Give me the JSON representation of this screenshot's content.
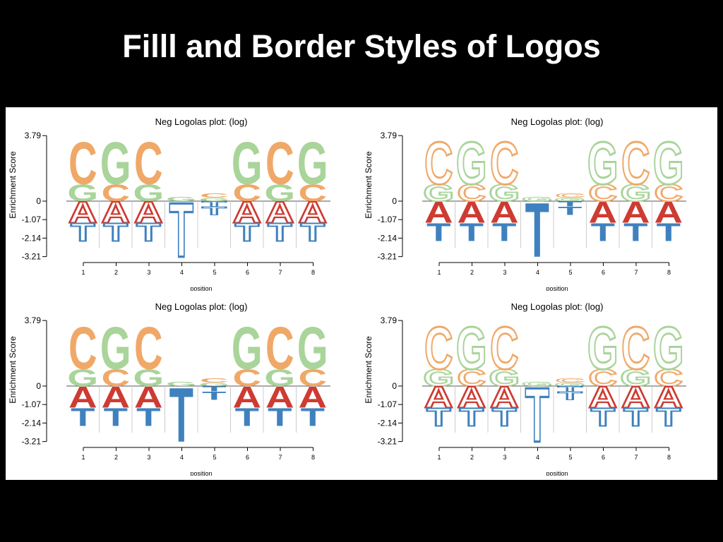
{
  "slide": {
    "title": "Filll and Border Styles of Logos"
  },
  "colors": {
    "C": "#F0A868",
    "G": "#A9D49A",
    "A": "#CD3B32",
    "T": "#3F81BE"
  },
  "chart_data": [
    {
      "type": "logo",
      "style": "fill-positive-border-negative",
      "title": "Neg Logolas plot: (log)",
      "xlabel": "position",
      "ylabel": "Enrichment Score",
      "yticks": [
        "3.79",
        "0",
        "-1.07",
        "-2.14",
        "-3.21"
      ],
      "ylim": [
        -3.21,
        3.79
      ],
      "positions": [
        "1",
        "2",
        "3",
        "4",
        "5",
        "6",
        "7",
        "8"
      ],
      "positive_fill": true,
      "negative_fill": false,
      "stacks": [
        {
          "pos": [
            [
              "G",
              1.0
            ],
            [
              "C",
              2.5
            ]
          ],
          "neg": [
            [
              "A",
              1.25
            ],
            [
              "T",
              1.05
            ]
          ]
        },
        {
          "pos": [
            [
              "C",
              1.0
            ],
            [
              "G",
              2.5
            ]
          ],
          "neg": [
            [
              "A",
              1.25
            ],
            [
              "T",
              1.05
            ]
          ]
        },
        {
          "pos": [
            [
              "G",
              1.0
            ],
            [
              "C",
              2.5
            ]
          ],
          "neg": [
            [
              "A",
              1.25
            ],
            [
              "T",
              1.05
            ]
          ]
        },
        {
          "pos": [
            [
              "G",
              0.25
            ]
          ],
          "neg": [
            [
              "T",
              3.21
            ]
          ]
        },
        {
          "pos": [
            [
              "G",
              0.2
            ],
            [
              "C",
              0.25
            ]
          ],
          "neg": [
            [
              "T",
              0.3
            ],
            [
              "T",
              0.5
            ]
          ]
        },
        {
          "pos": [
            [
              "C",
              1.0
            ],
            [
              "G",
              2.5
            ]
          ],
          "neg": [
            [
              "A",
              1.25
            ],
            [
              "T",
              1.05
            ]
          ]
        },
        {
          "pos": [
            [
              "G",
              1.0
            ],
            [
              "C",
              2.5
            ]
          ],
          "neg": [
            [
              "A",
              1.25
            ],
            [
              "T",
              1.05
            ]
          ]
        },
        {
          "pos": [
            [
              "C",
              1.0
            ],
            [
              "G",
              2.5
            ]
          ],
          "neg": [
            [
              "A",
              1.25
            ],
            [
              "T",
              1.05
            ]
          ]
        }
      ]
    },
    {
      "type": "logo",
      "style": "border-positive-fill-negative",
      "title": "Neg Logolas plot: (log)",
      "xlabel": "position",
      "ylabel": "Enrichment Score",
      "yticks": [
        "3.79",
        "0",
        "-1.07",
        "-2.14",
        "-3.21"
      ],
      "ylim": [
        -3.21,
        3.79
      ],
      "positions": [
        "1",
        "2",
        "3",
        "4",
        "5",
        "6",
        "7",
        "8"
      ],
      "positive_fill": false,
      "negative_fill": true,
      "stacks": [
        {
          "pos": [
            [
              "G",
              1.0
            ],
            [
              "C",
              2.5
            ]
          ],
          "neg": [
            [
              "A",
              1.25
            ],
            [
              "T",
              1.05
            ]
          ]
        },
        {
          "pos": [
            [
              "C",
              1.0
            ],
            [
              "G",
              2.5
            ]
          ],
          "neg": [
            [
              "A",
              1.25
            ],
            [
              "T",
              1.05
            ]
          ]
        },
        {
          "pos": [
            [
              "G",
              1.0
            ],
            [
              "C",
              2.5
            ]
          ],
          "neg": [
            [
              "A",
              1.25
            ],
            [
              "T",
              1.05
            ]
          ]
        },
        {
          "pos": [
            [
              "G",
              0.25
            ]
          ],
          "neg": [
            [
              "T",
              3.21
            ]
          ]
        },
        {
          "pos": [
            [
              "G",
              0.2
            ],
            [
              "C",
              0.25
            ]
          ],
          "neg": [
            [
              "T",
              0.3
            ],
            [
              "T",
              0.5
            ]
          ]
        },
        {
          "pos": [
            [
              "C",
              1.0
            ],
            [
              "G",
              2.5
            ]
          ],
          "neg": [
            [
              "A",
              1.25
            ],
            [
              "T",
              1.05
            ]
          ]
        },
        {
          "pos": [
            [
              "G",
              1.0
            ],
            [
              "C",
              2.5
            ]
          ],
          "neg": [
            [
              "A",
              1.25
            ],
            [
              "T",
              1.05
            ]
          ]
        },
        {
          "pos": [
            [
              "C",
              1.0
            ],
            [
              "G",
              2.5
            ]
          ],
          "neg": [
            [
              "A",
              1.25
            ],
            [
              "T",
              1.05
            ]
          ]
        }
      ]
    },
    {
      "type": "logo",
      "style": "fill-both",
      "title": "Neg Logolas plot: (log)",
      "xlabel": "position",
      "ylabel": "Enrichment Score",
      "yticks": [
        "3.79",
        "0",
        "-1.07",
        "-2.14",
        "-3.21"
      ],
      "ylim": [
        -3.21,
        3.79
      ],
      "positions": [
        "1",
        "2",
        "3",
        "4",
        "5",
        "6",
        "7",
        "8"
      ],
      "positive_fill": true,
      "negative_fill": true,
      "stacks": [
        {
          "pos": [
            [
              "G",
              1.0
            ],
            [
              "C",
              2.5
            ]
          ],
          "neg": [
            [
              "A",
              1.25
            ],
            [
              "T",
              1.05
            ]
          ]
        },
        {
          "pos": [
            [
              "C",
              1.0
            ],
            [
              "G",
              2.5
            ]
          ],
          "neg": [
            [
              "A",
              1.25
            ],
            [
              "T",
              1.05
            ]
          ]
        },
        {
          "pos": [
            [
              "G",
              1.0
            ],
            [
              "C",
              2.5
            ]
          ],
          "neg": [
            [
              "A",
              1.25
            ],
            [
              "T",
              1.05
            ]
          ]
        },
        {
          "pos": [
            [
              "G",
              0.25
            ]
          ],
          "neg": [
            [
              "T",
              3.21
            ]
          ]
        },
        {
          "pos": [
            [
              "G",
              0.2
            ],
            [
              "C",
              0.25
            ]
          ],
          "neg": [
            [
              "T",
              0.3
            ],
            [
              "T",
              0.5
            ]
          ]
        },
        {
          "pos": [
            [
              "C",
              1.0
            ],
            [
              "G",
              2.5
            ]
          ],
          "neg": [
            [
              "A",
              1.25
            ],
            [
              "T",
              1.05
            ]
          ]
        },
        {
          "pos": [
            [
              "G",
              1.0
            ],
            [
              "C",
              2.5
            ]
          ],
          "neg": [
            [
              "A",
              1.25
            ],
            [
              "T",
              1.05
            ]
          ]
        },
        {
          "pos": [
            [
              "C",
              1.0
            ],
            [
              "G",
              2.5
            ]
          ],
          "neg": [
            [
              "A",
              1.25
            ],
            [
              "T",
              1.05
            ]
          ]
        }
      ]
    },
    {
      "type": "logo",
      "style": "border-both",
      "title": "Neg Logolas plot: (log)",
      "xlabel": "position",
      "ylabel": "Enrichment Score",
      "yticks": [
        "3.79",
        "0",
        "-1.07",
        "-2.14",
        "-3.21"
      ],
      "ylim": [
        -3.21,
        3.79
      ],
      "positions": [
        "1",
        "2",
        "3",
        "4",
        "5",
        "6",
        "7",
        "8"
      ],
      "positive_fill": false,
      "negative_fill": false,
      "stacks": [
        {
          "pos": [
            [
              "G",
              1.0
            ],
            [
              "C",
              2.5
            ]
          ],
          "neg": [
            [
              "A",
              1.25
            ],
            [
              "T",
              1.05
            ]
          ]
        },
        {
          "pos": [
            [
              "C",
              1.0
            ],
            [
              "G",
              2.5
            ]
          ],
          "neg": [
            [
              "A",
              1.25
            ],
            [
              "T",
              1.05
            ]
          ]
        },
        {
          "pos": [
            [
              "G",
              1.0
            ],
            [
              "C",
              2.5
            ]
          ],
          "neg": [
            [
              "A",
              1.25
            ],
            [
              "T",
              1.05
            ]
          ]
        },
        {
          "pos": [
            [
              "G",
              0.25
            ]
          ],
          "neg": [
            [
              "T",
              3.21
            ]
          ]
        },
        {
          "pos": [
            [
              "G",
              0.2
            ],
            [
              "C",
              0.25
            ]
          ],
          "neg": [
            [
              "T",
              0.3
            ],
            [
              "T",
              0.5
            ]
          ]
        },
        {
          "pos": [
            [
              "C",
              1.0
            ],
            [
              "G",
              2.5
            ]
          ],
          "neg": [
            [
              "A",
              1.25
            ],
            [
              "T",
              1.05
            ]
          ]
        },
        {
          "pos": [
            [
              "G",
              1.0
            ],
            [
              "C",
              2.5
            ]
          ],
          "neg": [
            [
              "A",
              1.25
            ],
            [
              "T",
              1.05
            ]
          ]
        },
        {
          "pos": [
            [
              "C",
              1.0
            ],
            [
              "G",
              2.5
            ]
          ],
          "neg": [
            [
              "A",
              1.25
            ],
            [
              "T",
              1.05
            ]
          ]
        }
      ]
    }
  ]
}
